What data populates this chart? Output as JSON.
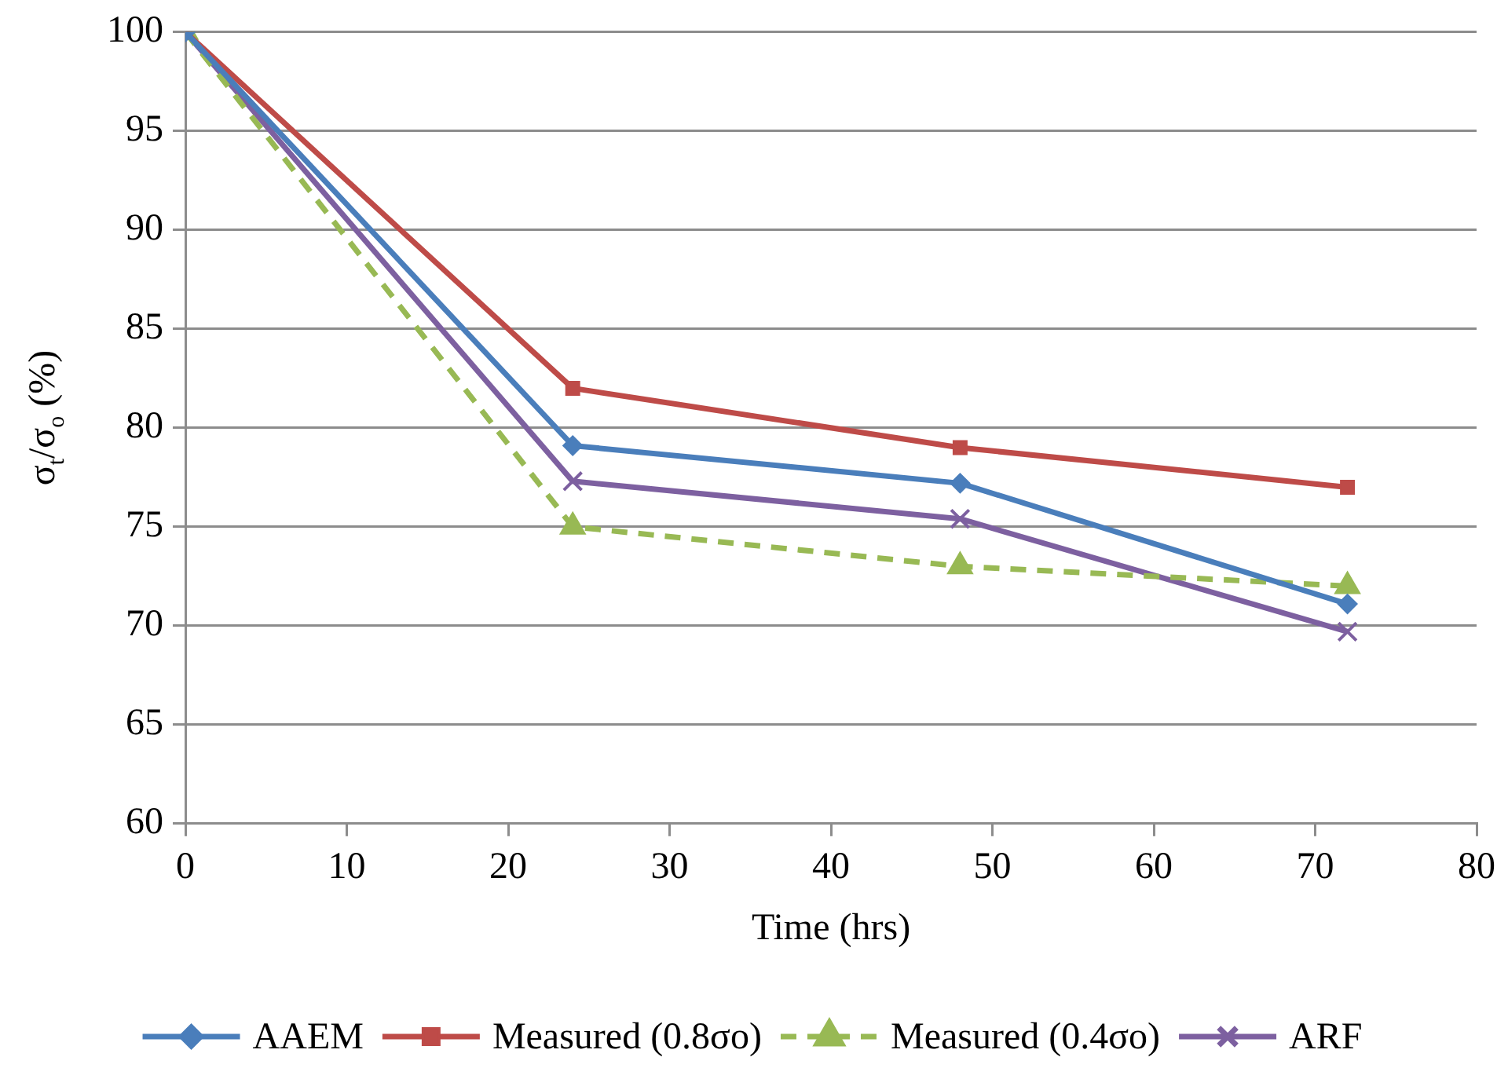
{
  "chart_data": {
    "type": "line",
    "xlabel": "Time (hrs)",
    "ylabel": "σ$_{t}$/σ$_{o}$ (%)",
    "x": [
      0,
      24,
      48,
      72
    ],
    "series": [
      {
        "name": "AAEM",
        "color": "#4a7ebb",
        "values": [
          100,
          79.1,
          77.2,
          71.1
        ],
        "marker": "diamond",
        "line_style": "solid"
      },
      {
        "name": "Measured (0.8σo)",
        "color": "#be4b48",
        "values": [
          100,
          82,
          79,
          77
        ],
        "marker": "square",
        "line_style": "solid"
      },
      {
        "name": "Measured (0.4σo)",
        "color": "#98b954",
        "values": [
          100,
          75,
          73,
          72
        ],
        "marker": "triangle",
        "line_style": "dashed"
      },
      {
        "name": "ARF",
        "color": "#7d60a0",
        "values": [
          100,
          77.3,
          75.4,
          69.7
        ],
        "marker": "cross",
        "line_style": "solid"
      }
    ],
    "xlim": [
      0,
      80
    ],
    "xticks": [
      0,
      10,
      20,
      30,
      40,
      50,
      60,
      70,
      80
    ],
    "ylim": [
      60,
      100
    ],
    "yticks": [
      60,
      65,
      70,
      75,
      80,
      85,
      90,
      95,
      100
    ],
    "grid": "y",
    "legend": "bottom"
  }
}
